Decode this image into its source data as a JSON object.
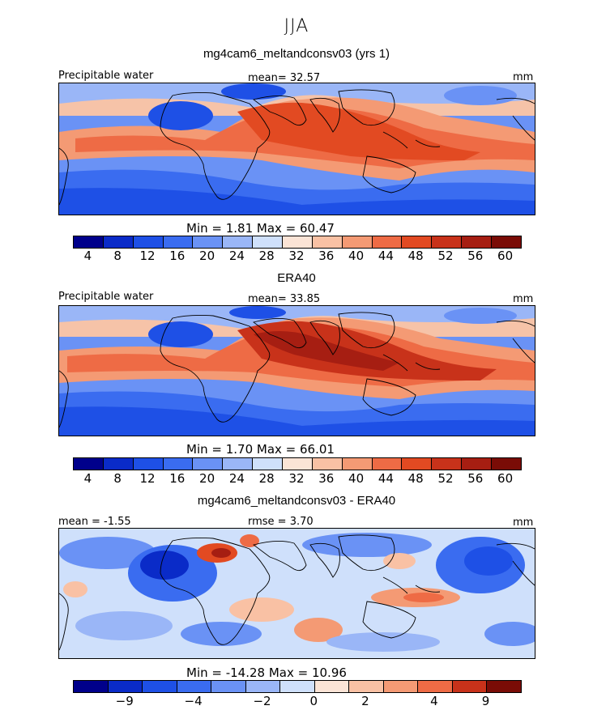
{
  "season": "JJA",
  "units": "mm",
  "panels": [
    {
      "title": "mg4cam6_meltandconsv03 (yrs 1)",
      "left_label": "Precipitable water",
      "center_label": "mean=  32.57",
      "right_label": "mm",
      "stats": "Min =    1.81  Max =   60.47"
    },
    {
      "title": "ERA40",
      "left_label": "Precipitable water",
      "center_label": "mean=  33.85",
      "right_label": "mm",
      "stats": "Min =    1.70  Max =   66.01"
    },
    {
      "title": "mg4cam6_meltandconsv03 - ERA40",
      "left_label": "mean =  -1.55",
      "center_label": "rmse =    3.70",
      "right_label": "mm",
      "stats": "Min = -14.28  Max =   10.96"
    }
  ],
  "colorbars": [
    {
      "colors": [
        "#00008b",
        "#0a2bc8",
        "#1e50e6",
        "#3a6cf0",
        "#6a92f5",
        "#9ab6f7",
        "#cfe0fb",
        "#fbe4d6",
        "#f9c1a4",
        "#f49a74",
        "#ee6b45",
        "#e24a22",
        "#c8321a",
        "#a61e12",
        "#7a0c06"
      ],
      "ticks": [
        "4",
        "8",
        "12",
        "16",
        "20",
        "24",
        "28",
        "32",
        "36",
        "40",
        "44",
        "48",
        "52",
        "56",
        "60"
      ]
    },
    {
      "colors": [
        "#00008b",
        "#0a2bc8",
        "#1e50e6",
        "#3a6cf0",
        "#6a92f5",
        "#9ab6f7",
        "#cfe0fb",
        "#fbe4d6",
        "#f9c1a4",
        "#f49a74",
        "#ee6b45",
        "#e24a22",
        "#c8321a",
        "#a61e12",
        "#7a0c06"
      ],
      "ticks": [
        "4",
        "8",
        "12",
        "16",
        "20",
        "24",
        "28",
        "32",
        "36",
        "40",
        "44",
        "48",
        "52",
        "56",
        "60"
      ]
    },
    {
      "colors": [
        "#00008b",
        "#0a2bc8",
        "#1e50e6",
        "#3a6cf0",
        "#6a92f5",
        "#9ab6f7",
        "#cfe0fb",
        "#fbe4d6",
        "#f9c1a4",
        "#f49a74",
        "#ee6b45",
        "#c8321a",
        "#7a0c06"
      ],
      "ticks": [
        "-9",
        "-4",
        "-2",
        "0",
        "2",
        "4",
        "9"
      ]
    }
  ],
  "palette": {
    "deep_blue": "#1a3fd8",
    "blue": "#4a78ef",
    "light_blue": "#a9c4f7",
    "pale": "#fbe4d6",
    "light_red": "#f6b08c",
    "red": "#ec6a42",
    "deep_red": "#c8321a",
    "dark_red": "#a61e12",
    "land": "#000000"
  }
}
